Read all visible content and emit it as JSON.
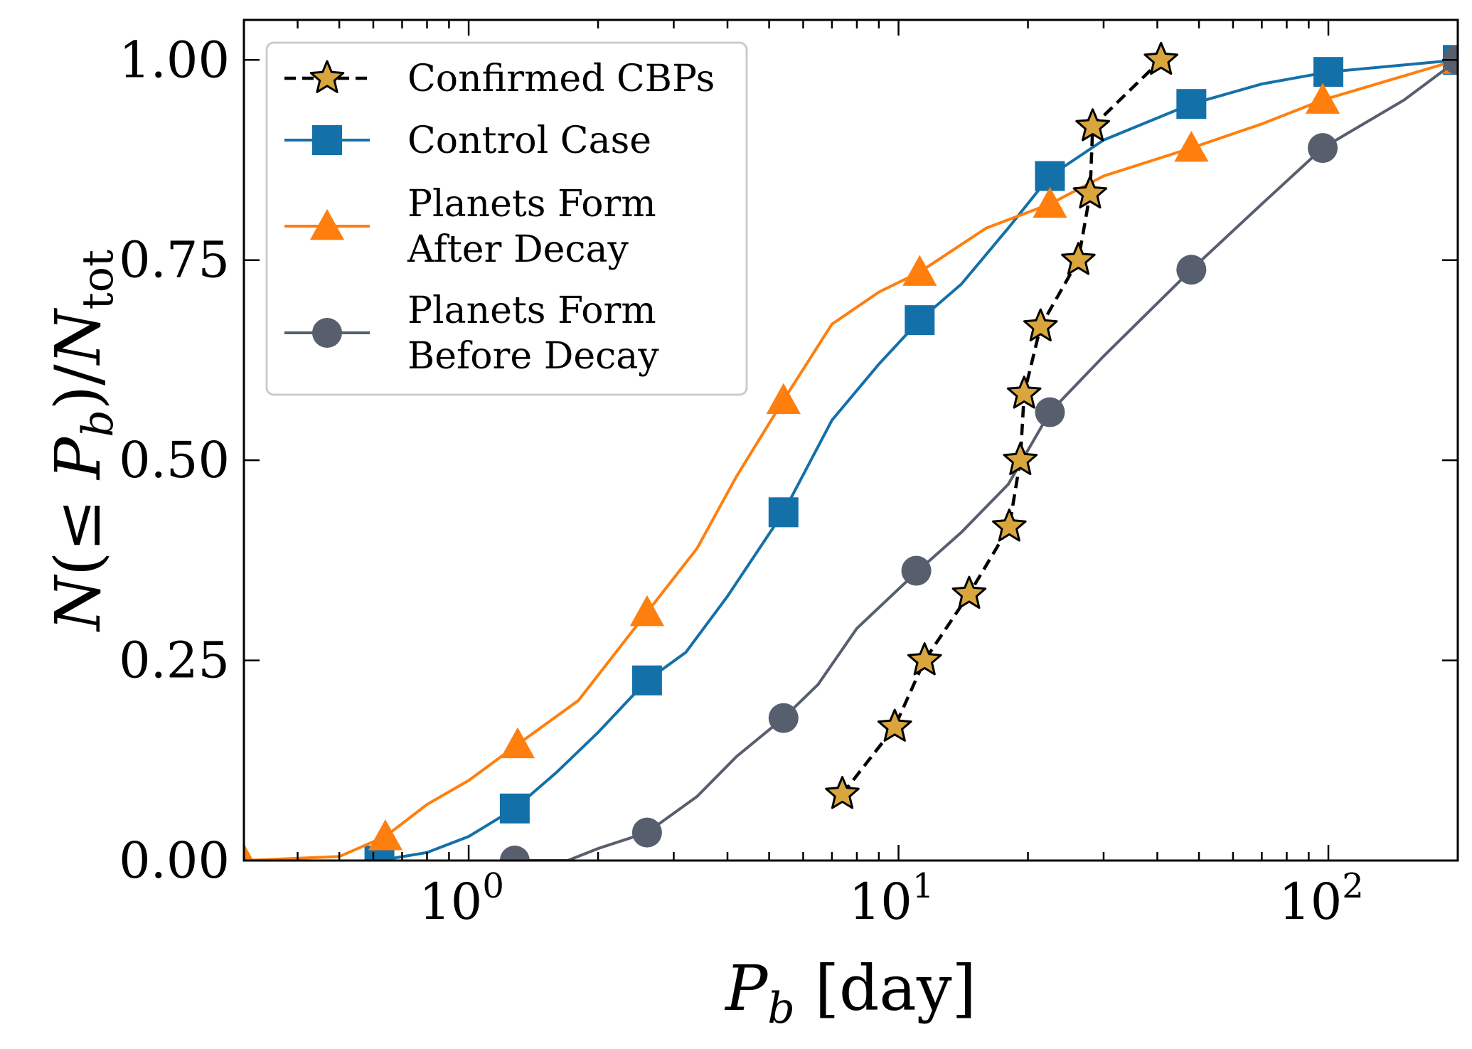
{
  "chart_data": {
    "type": "line",
    "xlabel": "P_b [day]",
    "ylabel": "N(≤ P_b)/N_tot",
    "x_scale": "log",
    "xlim": [
      0.3,
      200
    ],
    "ylim": [
      0,
      1.05
    ],
    "x_ticks": [
      {
        "value": 1,
        "label": "10",
        "exp": "0"
      },
      {
        "value": 10,
        "label": "10",
        "exp": "1"
      },
      {
        "value": 100,
        "label": "10",
        "exp": "2"
      }
    ],
    "y_ticks": [
      {
        "value": 0.0,
        "label": "0.00"
      },
      {
        "value": 0.25,
        "label": "0.25"
      },
      {
        "value": 0.5,
        "label": "0.50"
      },
      {
        "value": 0.75,
        "label": "0.75"
      },
      {
        "value": 1.0,
        "label": "1.00"
      }
    ],
    "legend_position": "top-left",
    "series": [
      {
        "name": "Confirmed CBPs",
        "color": "#000000",
        "marker_color": "#d9a63e",
        "marker": "star",
        "linestyle": "dashed",
        "markers": [
          [
            7.4,
            0.083
          ],
          [
            9.8,
            0.167
          ],
          [
            11.5,
            0.25
          ],
          [
            14.6,
            0.333
          ],
          [
            18.1,
            0.417
          ],
          [
            19.2,
            0.5
          ],
          [
            19.6,
            0.583
          ],
          [
            21.4,
            0.667
          ],
          [
            26.2,
            0.75
          ],
          [
            27.9,
            0.833
          ],
          [
            28.3,
            0.917
          ],
          [
            40.8,
            1.0
          ]
        ]
      },
      {
        "name": "Control Case",
        "color": "#1470a8",
        "marker": "square",
        "linestyle": "solid",
        "curve": [
          [
            0.62,
            0.0
          ],
          [
            0.8,
            0.01
          ],
          [
            1.0,
            0.03
          ],
          [
            1.28,
            0.065
          ],
          [
            1.6,
            0.11
          ],
          [
            2.0,
            0.16
          ],
          [
            2.6,
            0.225
          ],
          [
            3.2,
            0.26
          ],
          [
            4.0,
            0.33
          ],
          [
            5.4,
            0.435
          ],
          [
            7.0,
            0.55
          ],
          [
            9.0,
            0.62
          ],
          [
            11.2,
            0.675
          ],
          [
            14.0,
            0.72
          ],
          [
            18.0,
            0.79
          ],
          [
            22.5,
            0.855
          ],
          [
            30.0,
            0.9
          ],
          [
            48.0,
            0.945
          ],
          [
            70.0,
            0.97
          ],
          [
            100.0,
            0.985
          ],
          [
            200.0,
            1.0
          ]
        ],
        "markers": [
          [
            0.62,
            0.0
          ],
          [
            1.28,
            0.065
          ],
          [
            2.6,
            0.225
          ],
          [
            5.4,
            0.435
          ],
          [
            11.2,
            0.675
          ],
          [
            22.5,
            0.855
          ],
          [
            48.0,
            0.945
          ],
          [
            100.0,
            0.985
          ],
          [
            200.0,
            1.0
          ]
        ]
      },
      {
        "name": "Planets Form After Decay",
        "color": "#ff7f0e",
        "marker": "triangle",
        "linestyle": "solid",
        "curve": [
          [
            0.3,
            0.0
          ],
          [
            0.5,
            0.005
          ],
          [
            0.64,
            0.03
          ],
          [
            0.8,
            0.07
          ],
          [
            1.0,
            0.1
          ],
          [
            1.3,
            0.145
          ],
          [
            1.8,
            0.2
          ],
          [
            2.6,
            0.31
          ],
          [
            3.4,
            0.39
          ],
          [
            4.2,
            0.48
          ],
          [
            5.4,
            0.575
          ],
          [
            7.0,
            0.67
          ],
          [
            9.0,
            0.71
          ],
          [
            11.2,
            0.735
          ],
          [
            16.0,
            0.79
          ],
          [
            22.5,
            0.82
          ],
          [
            30.0,
            0.855
          ],
          [
            48.0,
            0.89
          ],
          [
            70.0,
            0.92
          ],
          [
            97.0,
            0.95
          ],
          [
            200.0,
            1.0
          ]
        ],
        "markers": [
          [
            0.3,
            0.0
          ],
          [
            0.64,
            0.03
          ],
          [
            1.3,
            0.145
          ],
          [
            2.6,
            0.31
          ],
          [
            5.4,
            0.575
          ],
          [
            11.2,
            0.735
          ],
          [
            22.5,
            0.82
          ],
          [
            48.0,
            0.89
          ],
          [
            97.0,
            0.95
          ],
          [
            200.0,
            1.0
          ]
        ]
      },
      {
        "name": "Planets Form Before Decay",
        "color": "#575e6e",
        "marker": "circle",
        "linestyle": "solid",
        "curve": [
          [
            1.28,
            0.0
          ],
          [
            1.7,
            0.0
          ],
          [
            2.0,
            0.015
          ],
          [
            2.6,
            0.035
          ],
          [
            3.4,
            0.08
          ],
          [
            4.2,
            0.13
          ],
          [
            5.4,
            0.178
          ],
          [
            6.5,
            0.22
          ],
          [
            8.0,
            0.29
          ],
          [
            11.0,
            0.36
          ],
          [
            14.0,
            0.41
          ],
          [
            18.0,
            0.47
          ],
          [
            22.5,
            0.56
          ],
          [
            30.0,
            0.63
          ],
          [
            48.0,
            0.738
          ],
          [
            70.0,
            0.82
          ],
          [
            97.0,
            0.89
          ],
          [
            150.0,
            0.95
          ],
          [
            200.0,
            1.0
          ]
        ],
        "markers": [
          [
            1.28,
            0.0
          ],
          [
            2.6,
            0.035
          ],
          [
            5.4,
            0.178
          ],
          [
            11.0,
            0.362
          ],
          [
            22.5,
            0.56
          ],
          [
            48.0,
            0.738
          ],
          [
            97.0,
            0.89
          ],
          [
            200.0,
            1.0
          ]
        ]
      }
    ],
    "legend_lines": [
      [
        "Confirmed CBPs"
      ],
      [
        "Control Case"
      ],
      [
        "Planets Form",
        "After Decay"
      ],
      [
        "Planets Form",
        "Before Decay"
      ]
    ]
  }
}
